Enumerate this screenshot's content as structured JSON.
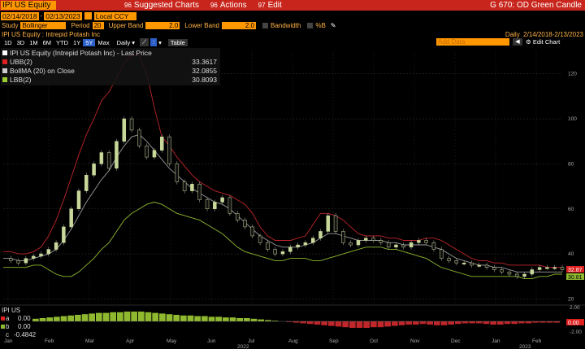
{
  "topbar": {
    "ticker": "IPI US Equity",
    "menus": [
      {
        "num": "96",
        "label": "Suggested Charts"
      },
      {
        "num": "96",
        "label": "Actions"
      },
      {
        "num": "97",
        "label": "Edit"
      }
    ],
    "template": "G 670: OD Green Candle"
  },
  "dates": {
    "start": "02/14/2018",
    "end": "02/13/2023",
    "currency": "Local CCY"
  },
  "study": {
    "label": "Study",
    "name": "Bollinger",
    "period_label": "Period",
    "period": "20",
    "upper_label": "Upper Band",
    "upper": "2.0",
    "lower_label": "Lower Band",
    "lower": "2.0",
    "bandwidth_label": "Bandwidth",
    "pctb_label": "%B"
  },
  "header": {
    "title": "IPI US Equity : Intrepid Potash Inc",
    "frequency": "Daily",
    "range": "2/14/2018-2/13/2023"
  },
  "toolbar": {
    "periods": [
      "1D",
      "3D",
      "1M",
      "6M",
      "YTD",
      "1Y",
      "5Y",
      "Max"
    ],
    "active_period": "5Y",
    "interval": "Daily",
    "table_label": "Table",
    "add_data": "Add Data",
    "edit_chart": "Edit Chart"
  },
  "legend": [
    {
      "label": "IPI US Equity (Intrepid Potash Inc) - Last Price",
      "value": "",
      "color": "#ffffff"
    },
    {
      "label": "UBB(2)",
      "value": "33.3617",
      "color": "#e02020"
    },
    {
      "label": "BollMA (20)  on Close",
      "value": "32.0855",
      "color": "#cccccc"
    },
    {
      "label": "LBB(2)",
      "value": "30.8093",
      "color": "#9acd32"
    }
  ],
  "price_badges": {
    "upper": "32.87",
    "lower": "30.81"
  },
  "lower_panel": {
    "title": "IPI US",
    "rows": [
      {
        "key": "a",
        "value": "0.00"
      },
      {
        "key": "b",
        "value": "0.00"
      },
      {
        "key": "c",
        "value": "-0.4842"
      }
    ],
    "badge": "0.00",
    "y_ticks": [
      "2.00",
      "0.00",
      "-2.00"
    ]
  },
  "chart_data": {
    "type": "line",
    "y_ticks": [
      20,
      40,
      60,
      80,
      100,
      120
    ],
    "ylim": [
      18,
      130
    ],
    "x_labels": [
      "Jan",
      "Feb",
      "Mar",
      "Apr",
      "May",
      "Jun",
      "Jul",
      "Aug",
      "Sep",
      "Oct",
      "Nov",
      "Dec",
      "Jan",
      "Feb"
    ],
    "year_labels": [
      "2022",
      "2023"
    ],
    "series": [
      {
        "name": "IPI US Equity (Intrepid Potash Inc) - Last Price",
        "color": "#ffffff",
        "values": [
          38,
          37,
          36,
          38,
          39,
          40,
          42,
          45,
          52,
          60,
          68,
          75,
          80,
          85,
          78,
          90,
          100,
          95,
          88,
          83,
          86,
          92,
          80,
          72,
          68,
          71,
          64,
          60,
          63,
          65,
          58,
          55,
          52,
          48,
          45,
          42,
          40,
          41,
          43,
          44,
          45,
          47,
          50,
          57,
          50,
          45,
          44,
          46,
          47,
          46,
          45,
          43,
          44,
          43,
          45,
          46,
          45,
          42,
          38,
          37,
          36,
          36,
          35,
          35,
          34,
          33,
          32,
          31,
          30,
          31,
          33,
          34,
          34,
          34,
          33
        ]
      },
      {
        "name": "UBB(2)",
        "color": "#c0262a",
        "values": [
          41,
          41,
          40,
          40,
          41,
          43,
          48,
          55,
          64,
          74,
          84,
          93,
          100,
          108,
          112,
          118,
          125,
          128,
          128,
          120,
          105,
          92,
          88,
          83,
          79,
          75,
          72,
          70,
          68,
          67,
          66,
          64,
          62,
          58,
          52,
          48,
          46,
          46,
          46,
          47,
          48,
          53,
          58,
          58,
          57,
          55,
          52,
          49,
          48,
          48,
          48,
          47,
          47,
          46,
          46,
          46,
          47,
          47,
          46,
          44,
          42,
          40,
          38,
          37,
          37,
          36,
          36,
          35,
          35,
          35,
          35,
          35,
          34,
          34,
          34
        ]
      },
      {
        "name": "BollMA (20)  on Close",
        "color": "#9a9a9a",
        "values": [
          38,
          38,
          37,
          37,
          38,
          39,
          40,
          42,
          46,
          51,
          57,
          63,
          68,
          73,
          77,
          83,
          88,
          92,
          93,
          90,
          86,
          82,
          78,
          75,
          72,
          69,
          67,
          65,
          63,
          62,
          60,
          57,
          54,
          51,
          48,
          46,
          44,
          43,
          43,
          43,
          44,
          45,
          47,
          49,
          49,
          48,
          47,
          46,
          46,
          46,
          46,
          45,
          45,
          44,
          44,
          44,
          44,
          43,
          42,
          40,
          38,
          37,
          36,
          35,
          35,
          34,
          34,
          33,
          32,
          32,
          32,
          32,
          32,
          32,
          32
        ]
      },
      {
        "name": "LBB(2)",
        "color": "#8fb92f",
        "values": [
          34,
          34,
          34,
          34,
          35,
          35,
          33,
          31,
          30,
          30,
          32,
          35,
          38,
          42,
          45,
          50,
          55,
          58,
          60,
          62,
          63,
          62,
          60,
          58,
          57,
          56,
          55,
          53,
          51,
          49,
          46,
          43,
          41,
          40,
          39,
          38,
          37,
          37,
          38,
          38,
          38,
          37,
          37,
          38,
          39,
          40,
          41,
          42,
          43,
          43,
          43,
          42,
          42,
          41,
          40,
          39,
          38,
          36,
          34,
          33,
          32,
          31,
          30,
          30,
          30,
          30,
          30,
          30,
          30,
          29,
          29,
          30,
          30,
          31,
          31
        ]
      }
    ],
    "histogram": [
      0.4,
      0.5,
      0.6,
      0.7,
      0.8,
      0.9,
      1.0,
      1.1,
      1.2,
      1.3,
      1.3,
      1.4,
      1.4,
      1.5,
      1.5,
      1.5,
      1.4,
      1.3,
      1.2,
      1.1,
      1.0,
      0.9,
      0.9,
      0.8,
      0.8,
      0.7,
      0.7,
      0.6,
      0.6,
      0.5,
      0.5,
      0.4,
      0.3,
      0.2,
      0.1,
      0.0,
      -0.1,
      -0.2,
      -0.3,
      -0.4,
      -0.5,
      -0.6,
      -0.7,
      -0.8,
      -0.9,
      -1.0,
      -1.0,
      -1.0,
      -0.9,
      -0.9,
      -0.8,
      -0.7,
      -0.6,
      -0.5,
      -0.5,
      -0.4,
      -0.5,
      -0.6,
      -0.6,
      -0.5,
      -0.4,
      -0.3,
      -0.3,
      -0.3,
      -0.4,
      -0.5,
      -0.5,
      -0.4,
      -0.4,
      -0.3,
      -0.3,
      -0.2,
      -0.2,
      -0.2,
      -0.2
    ]
  }
}
